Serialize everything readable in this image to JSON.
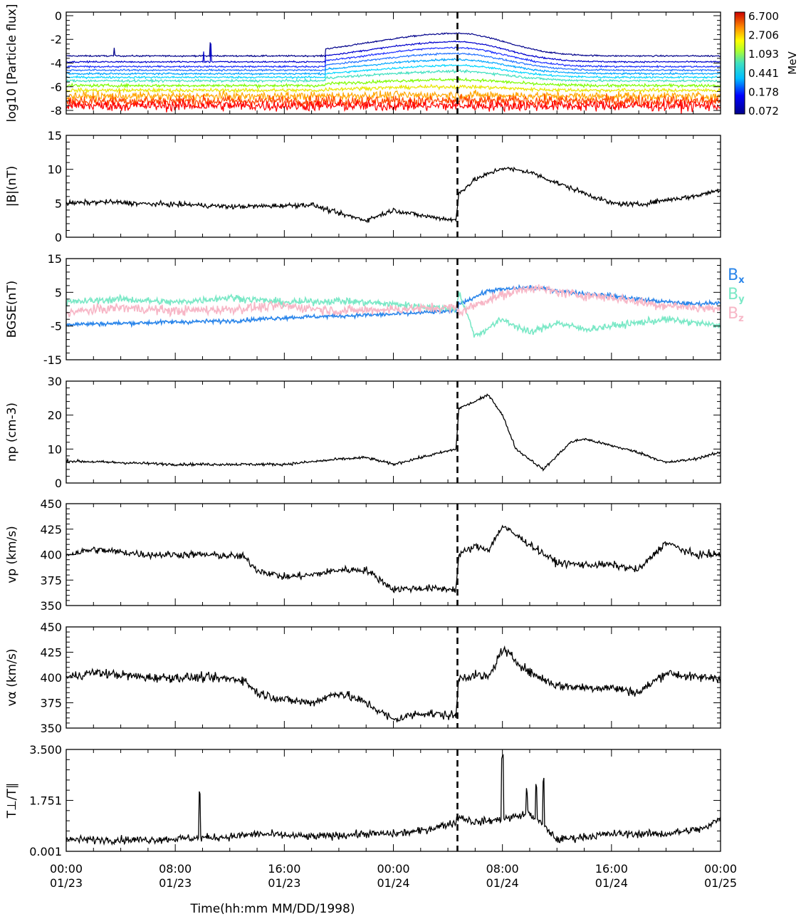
{
  "chart_data": {
    "type": "line",
    "x_axis": {
      "label": "Time(hh:mm MM/DD/1998)",
      "range_hours": [
        0,
        48
      ],
      "ticks": [
        {
          "time": "00:00",
          "date": "01/23",
          "hour": 0
        },
        {
          "time": "08:00",
          "date": "01/23",
          "hour": 8
        },
        {
          "time": "16:00",
          "date": "01/23",
          "hour": 16
        },
        {
          "time": "00:00",
          "date": "01/24",
          "hour": 24
        },
        {
          "time": "08:00",
          "date": "01/24",
          "hour": 32
        },
        {
          "time": "16:00",
          "date": "01/24",
          "hour": 40
        },
        {
          "time": "00:00",
          "date": "01/25",
          "hour": 48
        }
      ],
      "shock_hour": 28.7
    },
    "panels": [
      {
        "id": "flux",
        "ylabel": "log10 [Particle flux]",
        "ylim": [
          -8.3,
          0.3
        ],
        "yticks": [
          0,
          -2,
          -4,
          -6,
          -8
        ],
        "ytick_labels": [
          "0",
          "-2",
          "-4",
          "-6",
          "-8"
        ],
        "colorbar": {
          "unit": "MeV",
          "labels": [
            "6.700",
            "2.706",
            "1.093",
            "0.441",
            "0.178",
            "0.072"
          ]
        },
        "series": [
          {
            "energy": 0.072,
            "color": "#00008b",
            "base": -3.4,
            "rise": 1.9,
            "noise": 0.06
          },
          {
            "energy": 0.1,
            "color": "#0000cd",
            "base": -3.9,
            "rise": 1.7,
            "noise": 0.06
          },
          {
            "energy": 0.14,
            "color": "#1b2fff",
            "base": -4.3,
            "rise": 1.6,
            "noise": 0.07
          },
          {
            "energy": 0.18,
            "color": "#1e6fff",
            "base": -4.6,
            "rise": 1.4,
            "noise": 0.07
          },
          {
            "energy": 0.25,
            "color": "#00a5ff",
            "base": -4.9,
            "rise": 1.2,
            "noise": 0.08
          },
          {
            "energy": 0.35,
            "color": "#00d5ff",
            "base": -5.2,
            "rise": 1.0,
            "noise": 0.08
          },
          {
            "energy": 0.44,
            "color": "#40e0c0",
            "base": -5.5,
            "rise": 0.8,
            "noise": 0.1
          },
          {
            "energy": 0.7,
            "color": "#7cfc00",
            "base": -5.9,
            "rise": 0.5,
            "noise": 0.12
          },
          {
            "energy": 1.09,
            "color": "#e6e600",
            "base": -6.3,
            "rise": 0.3,
            "noise": 0.15
          },
          {
            "energy": 1.8,
            "color": "#ffa500",
            "base": -6.8,
            "rise": 0.1,
            "noise": 0.35
          },
          {
            "energy": 2.7,
            "color": "#ff4500",
            "base": -7.2,
            "rise": 0.0,
            "noise": 0.45
          },
          {
            "energy": 6.7,
            "color": "#ff0000",
            "base": -7.6,
            "rise": 0.0,
            "noise": 0.45
          }
        ]
      },
      {
        "id": "bmag",
        "ylabel": "|B|(nT)",
        "ylim": [
          0,
          15
        ],
        "yticks": [
          0,
          5,
          10,
          15
        ],
        "ytick_labels": [
          "0",
          "5",
          "10",
          "15"
        ],
        "series": [
          {
            "name": "|B|",
            "color": "#000000",
            "x": [
              0,
              3,
              6,
              9,
              12,
              15,
              18,
              20,
              22,
              24,
              26,
              28.6,
              28.8,
              30,
              32,
              34,
              36,
              38,
              40,
              42,
              44,
              46,
              48
            ],
            "y": [
              5.0,
              5.2,
              4.9,
              4.8,
              4.5,
              4.6,
              4.8,
              3.5,
              2.5,
              4.0,
              3.2,
              2.5,
              6.5,
              8.5,
              10.2,
              9.6,
              8.0,
              6.5,
              5.0,
              4.8,
              5.5,
              6.0,
              7.0
            ],
            "noise": 0.35
          }
        ]
      },
      {
        "id": "bgse",
        "ylabel": "BGSE(nT)",
        "ylim": [
          -15,
          15
        ],
        "yticks": [
          -15,
          -5,
          5,
          15
        ],
        "ytick_labels": [
          "-15",
          "-5",
          "5",
          "15"
        ],
        "series": [
          {
            "name": "Bx",
            "color": "#2a85ea",
            "x": [
              0,
              4,
              8,
              12,
              16,
              20,
              24,
              28.6,
              28.8,
              31,
              34,
              37,
              40,
              43,
              46,
              48
            ],
            "y": [
              -4.5,
              -4.2,
              -3.8,
              -3.5,
              -2.5,
              -2.0,
              -1.5,
              -0.5,
              1.5,
              5.5,
              6.5,
              5.0,
              4.0,
              2.5,
              1.5,
              2.0
            ],
            "noise": 0.6
          },
          {
            "name": "By",
            "color": "#7ae8c6",
            "x": [
              0,
              4,
              8,
              12,
              16,
              20,
              24,
              28.6,
              28.8,
              30,
              32,
              34,
              36,
              38,
              40,
              42,
              44,
              46,
              48
            ],
            "y": [
              2.0,
              3.0,
              2.0,
              3.5,
              2.0,
              2.5,
              1.5,
              0.0,
              5.0,
              -8.0,
              -3.0,
              -7.0,
              -4.0,
              -6.0,
              -5.0,
              -4.0,
              -3.0,
              -4.0,
              -5.0
            ],
            "noise": 1.0
          },
          {
            "name": "Bz",
            "color": "#f7b6c6",
            "x": [
              0,
              4,
              8,
              12,
              16,
              20,
              24,
              28.6,
              28.8,
              31,
              34,
              37,
              40,
              43,
              46,
              48
            ],
            "y": [
              -1.0,
              0.5,
              -0.5,
              0.0,
              1.0,
              -0.5,
              0.0,
              0.5,
              -1.0,
              3.0,
              6.5,
              4.5,
              3.5,
              1.5,
              0.5,
              0.0
            ],
            "noise": 1.4
          }
        ],
        "legend": [
          {
            "label": "B",
            "sub": "x",
            "color": "#2a85ea"
          },
          {
            "label": "B",
            "sub": "y",
            "color": "#7ae8c6"
          },
          {
            "label": "B",
            "sub": "z",
            "color": "#f7b6c6"
          }
        ]
      },
      {
        "id": "np",
        "ylabel": "np (cm-3)",
        "ylim": [
          0,
          30
        ],
        "yticks": [
          0,
          10,
          20,
          30
        ],
        "ytick_labels": [
          "0",
          "10",
          "20",
          "30"
        ],
        "series": [
          {
            "name": "np",
            "color": "#000000",
            "x": [
              0,
              4,
              8,
              12,
              16,
              20,
              22,
              24,
              26,
              28.6,
              28.8,
              30,
              31,
              32,
              33,
              34,
              35,
              36,
              37,
              38,
              40,
              42,
              44,
              46,
              48
            ],
            "y": [
              6.5,
              6.0,
              5.5,
              5.5,
              5.5,
              7.0,
              7.5,
              5.5,
              7.5,
              10.0,
              22.0,
              24.0,
              26.0,
              20.0,
              10.0,
              7.0,
              4.0,
              8.0,
              12.0,
              13.0,
              11.0,
              9.0,
              6.0,
              7.0,
              9.0
            ],
            "noise": 0.4
          }
        ]
      },
      {
        "id": "vp",
        "ylabel": "vp (km/s)",
        "ylim": [
          350,
          450
        ],
        "yticks": [
          350,
          375,
          400,
          425,
          450
        ],
        "ytick_labels": [
          "350",
          "375",
          "400",
          "425",
          "450"
        ],
        "series": [
          {
            "name": "vp",
            "color": "#000000",
            "x": [
              0,
              2,
              6,
              10,
              13,
              14,
              16,
              18,
              20,
              22,
              24,
              26,
              28.6,
              28.8,
              30,
              31,
              32,
              34,
              36,
              38,
              40,
              42,
              44,
              46,
              48
            ],
            "y": [
              400,
              405,
              400,
              400,
              398,
              385,
              378,
              380,
              385,
              385,
              366,
              367,
              366,
              400,
              408,
              405,
              428,
              410,
              392,
              390,
              390,
              385,
              412,
              400,
              400
            ],
            "noise": 3.5
          }
        ]
      },
      {
        "id": "va",
        "ylabel": "vα (km/s)",
        "ylim": [
          350,
          450
        ],
        "yticks": [
          350,
          375,
          400,
          425,
          450
        ],
        "ytick_labels": [
          "350",
          "375",
          "400",
          "425",
          "450"
        ],
        "series": [
          {
            "name": "vα",
            "color": "#000000",
            "x": [
              0,
              2,
              6,
              10,
              13,
              14,
              16,
              18,
              20,
              22,
              24,
              26,
              28.6,
              28.8,
              30,
              31,
              32,
              34,
              36,
              38,
              40,
              42,
              44,
              46,
              48
            ],
            "y": [
              400,
              405,
              400,
              400,
              398,
              385,
              378,
              375,
              385,
              375,
              358,
              365,
              362,
              400,
              402,
              400,
              428,
              405,
              392,
              390,
              390,
              385,
              405,
              400,
              400
            ],
            "noise": 4.5
          }
        ]
      },
      {
        "id": "tratio",
        "ylabel": "T⊥/T∥",
        "ylim": [
          0.001,
          3.5
        ],
        "yticks": [
          0.001,
          1.751,
          3.5
        ],
        "ytick_labels": [
          "0.001",
          "1.751",
          "3.500"
        ],
        "series": [
          {
            "name": "T⊥/T∥",
            "color": "#000000",
            "x": [
              0,
              6,
              12,
              14,
              18,
              22,
              24,
              26,
              28.6,
              28.8,
              30,
              32,
              34,
              35,
              36,
              38,
              40,
              44,
              47,
              48
            ],
            "y": [
              0.4,
              0.4,
              0.5,
              0.6,
              0.5,
              0.6,
              0.6,
              0.7,
              1.0,
              1.2,
              1.0,
              1.1,
              1.3,
              0.9,
              0.4,
              0.5,
              0.6,
              0.6,
              0.8,
              1.2
            ],
            "noise": 0.13,
            "spikes": [
              {
                "x": 9.8,
                "y": 2.0
              },
              {
                "x": 32.0,
                "y": 3.3
              },
              {
                "x": 33.8,
                "y": 2.1
              },
              {
                "x": 35.0,
                "y": 2.4
              },
              {
                "x": 34.5,
                "y": 2.2
              }
            ]
          }
        ]
      }
    ]
  }
}
